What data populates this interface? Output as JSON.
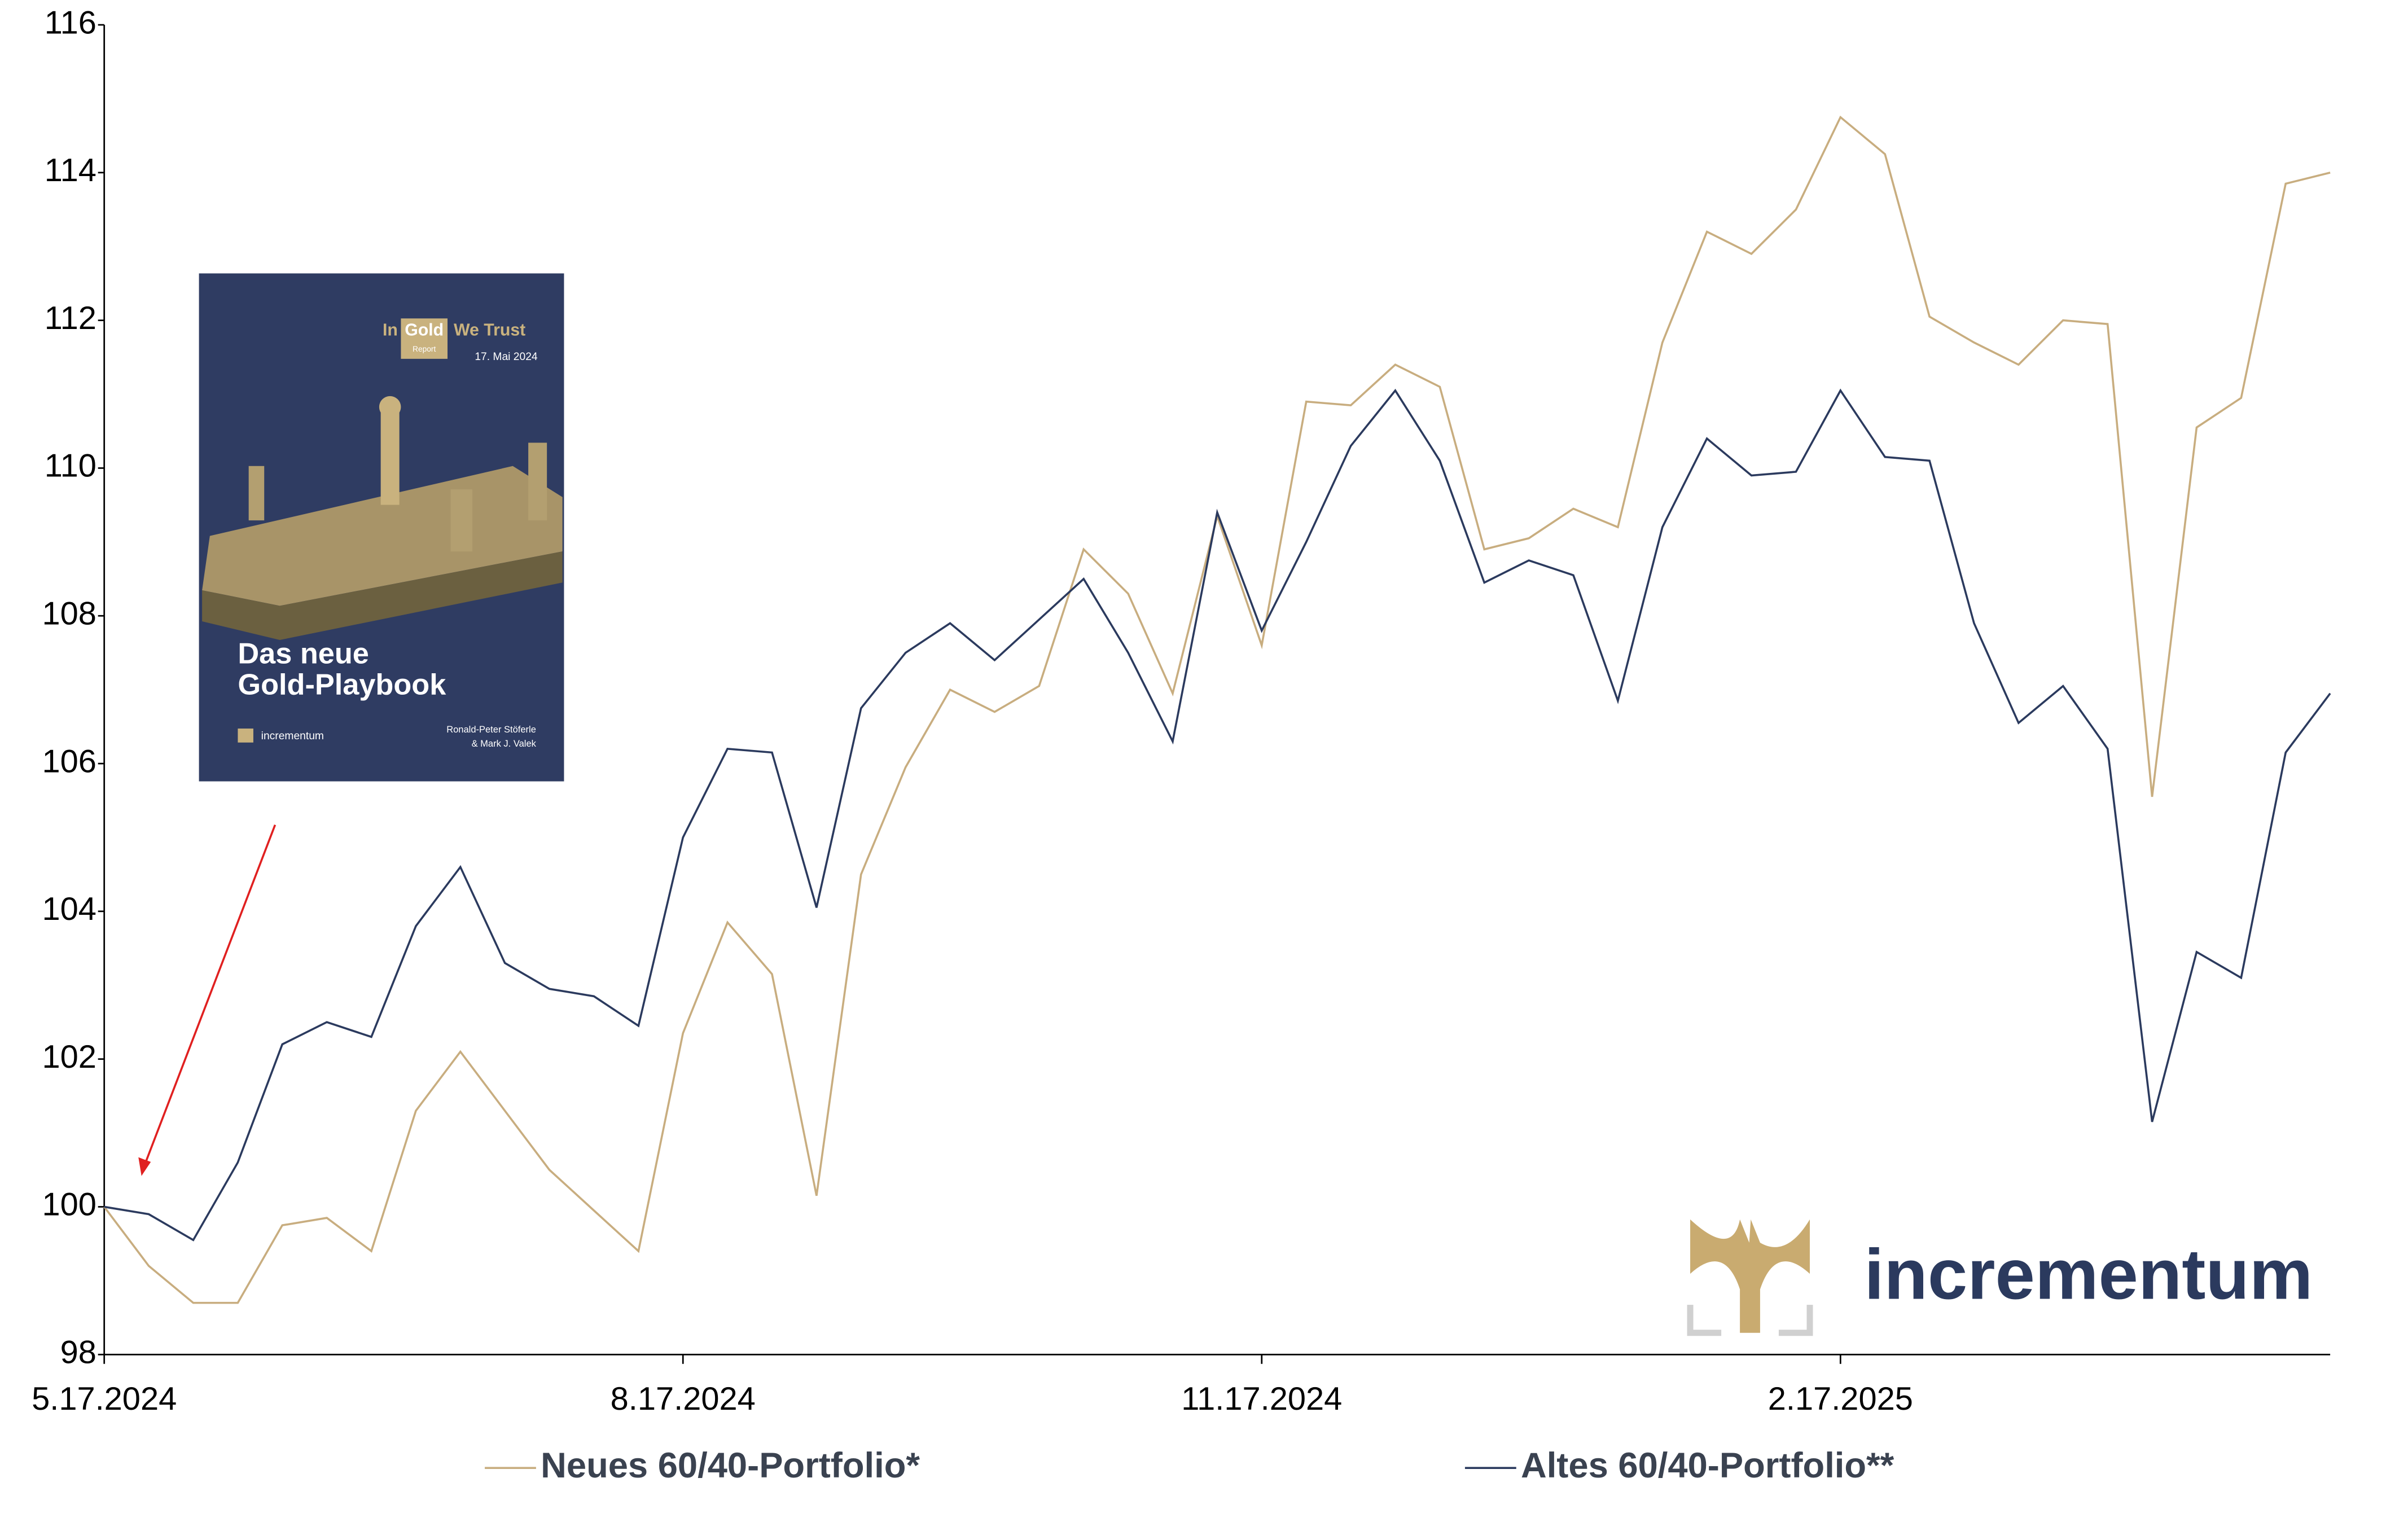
{
  "chart_data": {
    "type": "line",
    "categories": [
      "5.17.2024",
      null,
      null,
      null,
      null,
      null,
      null,
      null,
      null,
      null,
      null,
      null,
      null,
      "8.17.2024",
      null,
      null,
      null,
      null,
      null,
      null,
      null,
      null,
      null,
      null,
      null,
      null,
      "11.17.2024",
      null,
      null,
      null,
      null,
      null,
      null,
      null,
      null,
      null,
      null,
      null,
      null,
      "2.17.2025",
      null,
      null,
      null,
      null,
      null,
      null,
      null,
      null,
      null,
      null,
      null
    ],
    "series": [
      {
        "name": "Neues 60/40-Portfolio*",
        "color": "#c8ad7f",
        "values": [
          100,
          99.2,
          98.7,
          98.7,
          99.75,
          99.85,
          99.4,
          101.3,
          102.1,
          101.3,
          100.5,
          99.95,
          99.4,
          102.35,
          103.85,
          103.15,
          100.15,
          104.5,
          105.95,
          107.0,
          106.7,
          107.05,
          108.9,
          108.3,
          106.95,
          109.35,
          107.6,
          110.9,
          110.85,
          111.4,
          111.1,
          108.9,
          109.05,
          109.45,
          109.2,
          111.7,
          113.2,
          112.9,
          113.5,
          114.75,
          114.25,
          112.05,
          111.7,
          111.4,
          112.0,
          111.95,
          105.55,
          110.55,
          110.95,
          113.85,
          114.0
        ]
      },
      {
        "name": "Altes 60/40-Portfolio**",
        "color": "#2b3a5e",
        "values": [
          100,
          99.9,
          99.55,
          100.6,
          102.2,
          102.5,
          102.3,
          103.8,
          104.6,
          103.3,
          102.95,
          102.85,
          102.45,
          105.0,
          106.2,
          106.15,
          104.05,
          106.75,
          107.5,
          107.9,
          107.4,
          107.95,
          108.5,
          107.5,
          106.3,
          109.4,
          107.8,
          109.0,
          110.3,
          111.05,
          110.1,
          108.45,
          108.75,
          108.55,
          106.85,
          109.2,
          110.4,
          109.9,
          109.95,
          111.05,
          110.15,
          110.1,
          107.9,
          106.55,
          107.05,
          106.2,
          101.15,
          103.45,
          103.1,
          106.15,
          106.95
        ]
      }
    ],
    "ylim": [
      98,
      116
    ],
    "yticks": [
      98,
      100,
      102,
      104,
      106,
      108,
      110,
      112,
      114,
      116
    ],
    "grid": false,
    "legend": "bottom"
  },
  "cover": {
    "brand_in": "In",
    "brand_gold": "Gold",
    "brand_trust": "We Trust",
    "report": "Report",
    "date": "17. Mai 2024",
    "title_line1": "Das neue",
    "title_line2": "Gold-Playbook",
    "publisher": "incrementum",
    "authors_line1": "Ronald-Peter Stöferle",
    "authors_line2": "& Mark J. Valek"
  },
  "logo": {
    "text": "incrementum"
  }
}
